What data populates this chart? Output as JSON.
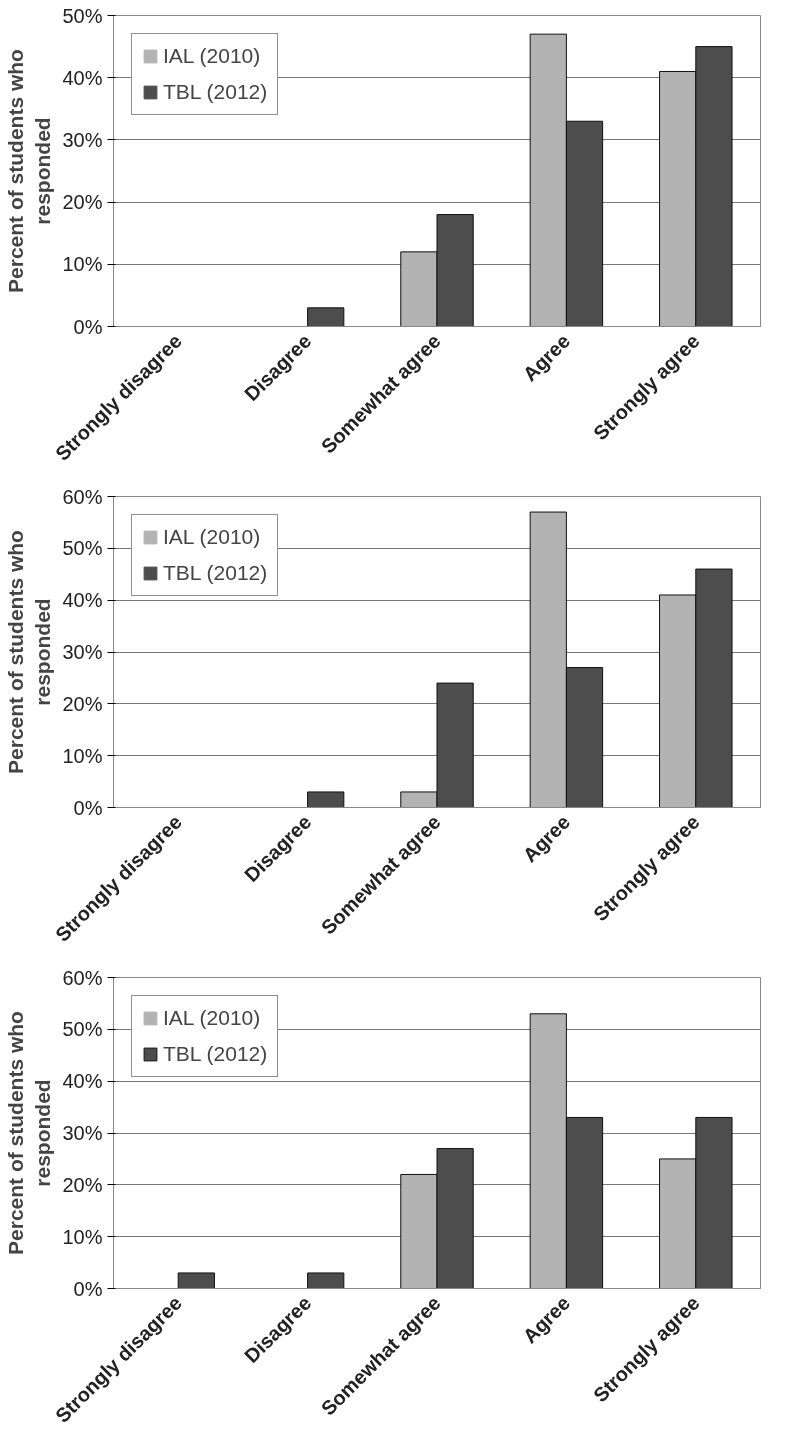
{
  "chart_data": [
    {
      "type": "bar",
      "categories": [
        "Strongly disagree",
        "Disagree",
        "Somewhat agree",
        "Agree",
        "Strongly agree"
      ],
      "ylabel": "Percent of students who\nresponded",
      "series": [
        {
          "name": "IAL (2010)",
          "color": "#b3b3b3",
          "values": [
            0,
            0,
            12,
            47,
            41
          ]
        },
        {
          "name": "TBL (2012)",
          "color": "#4d4d4d",
          "values": [
            0,
            3,
            18,
            33,
            45
          ]
        }
      ],
      "ylim": [
        0,
        50
      ],
      "yticks": [
        {
          "value": 0,
          "label": "0%"
        },
        {
          "value": 10,
          "label": "10%"
        },
        {
          "value": 20,
          "label": "20%"
        },
        {
          "value": 30,
          "label": "30%"
        },
        {
          "value": 40,
          "label": "40%"
        },
        {
          "value": 50,
          "label": "50%"
        }
      ],
      "grid": "y",
      "legend": "top left"
    },
    {
      "type": "bar",
      "categories": [
        "Strongly disagree",
        "Disagree",
        "Somewhat agree",
        "Agree",
        "Strongly agree"
      ],
      "ylabel": "Percent of students who\nresponded",
      "series": [
        {
          "name": "IAL (2010)",
          "color": "#b3b3b3",
          "values": [
            0,
            0,
            3,
            57,
            41
          ]
        },
        {
          "name": "TBL (2012)",
          "color": "#4d4d4d",
          "values": [
            0,
            3,
            24,
            27,
            46
          ]
        }
      ],
      "ylim": [
        0,
        60
      ],
      "yticks": [
        {
          "value": 0,
          "label": "0%"
        },
        {
          "value": 10,
          "label": "10%"
        },
        {
          "value": 20,
          "label": "20%"
        },
        {
          "value": 30,
          "label": "30%"
        },
        {
          "value": 40,
          "label": "40%"
        },
        {
          "value": 50,
          "label": "50%"
        },
        {
          "value": 60,
          "label": "60%"
        }
      ],
      "grid": "y",
      "legend": "top left"
    },
    {
      "type": "bar",
      "categories": [
        "Strongly disagree",
        "Disagree",
        "Somewhat agree",
        "Agree",
        "Strongly agree"
      ],
      "ylabel": "Percent of students who\nresponded",
      "series": [
        {
          "name": "IAL (2010)",
          "color": "#b3b3b3",
          "values": [
            0,
            0,
            22,
            53,
            25
          ]
        },
        {
          "name": "TBL (2012)",
          "color": "#4d4d4d",
          "values": [
            3,
            3,
            27,
            33,
            33
          ]
        }
      ],
      "ylim": [
        0,
        60
      ],
      "yticks": [
        {
          "value": 0,
          "label": "0%"
        },
        {
          "value": 10,
          "label": "10%"
        },
        {
          "value": 20,
          "label": "20%"
        },
        {
          "value": 30,
          "label": "30%"
        },
        {
          "value": 40,
          "label": "40%"
        },
        {
          "value": 50,
          "label": "50%"
        },
        {
          "value": 60,
          "label": "60%"
        }
      ],
      "grid": "y",
      "legend": "top left"
    }
  ]
}
